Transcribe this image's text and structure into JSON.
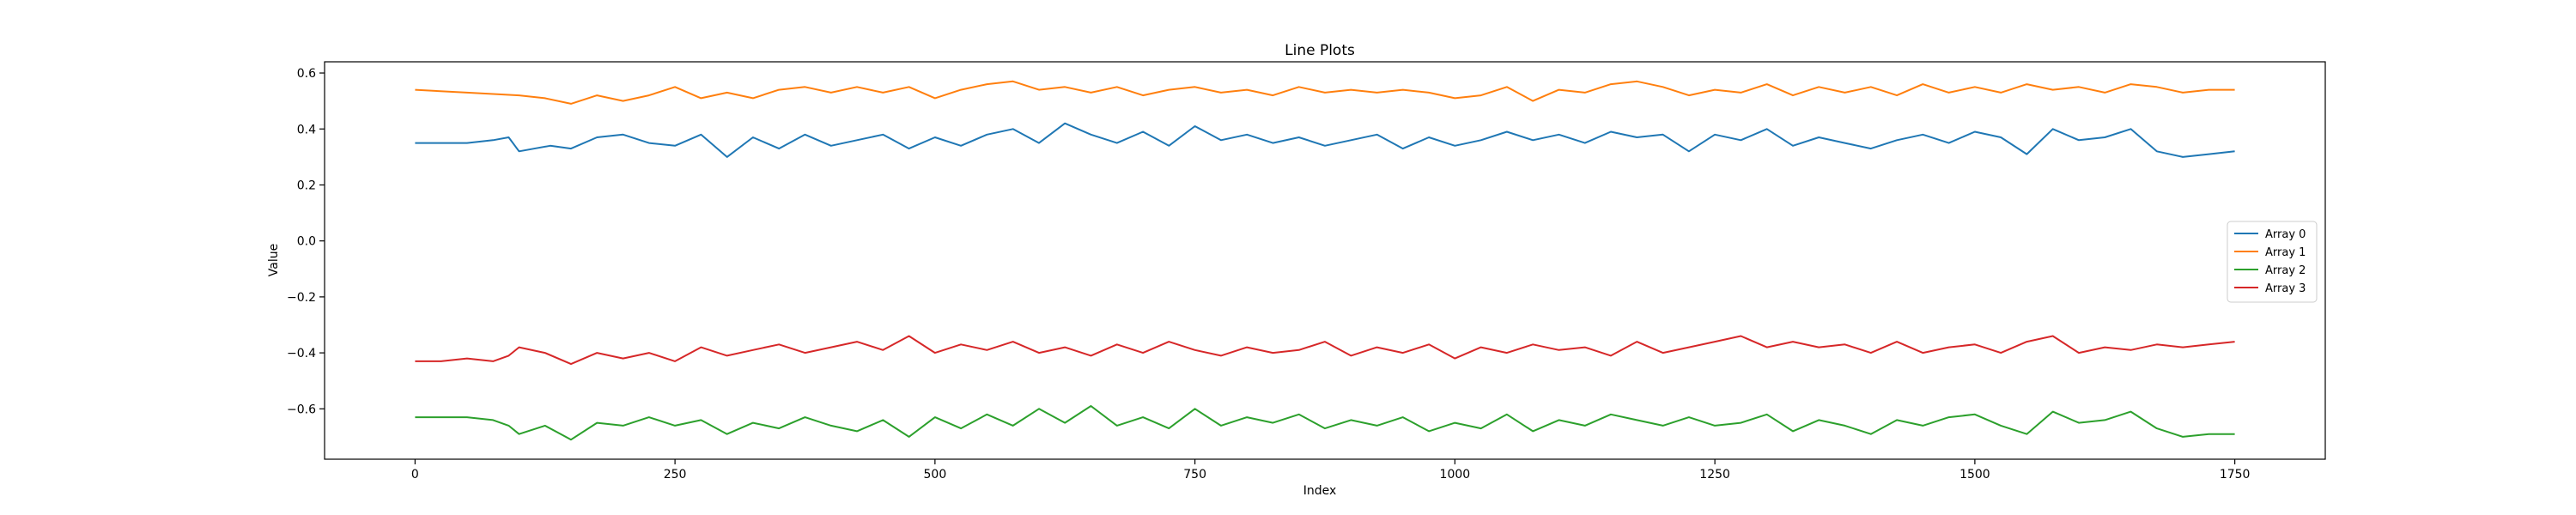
{
  "chart_data": {
    "type": "line",
    "title": "Line Plots",
    "xlabel": "Index",
    "ylabel": "Value",
    "xlim": [
      -87,
      1837
    ],
    "ylim": [
      -0.78,
      0.64
    ],
    "xticks": [
      0,
      250,
      500,
      750,
      1000,
      1250,
      1500,
      1750
    ],
    "xtick_labels": [
      "0",
      "250",
      "500",
      "750",
      "1000",
      "1250",
      "1500",
      "1750"
    ],
    "yticks": [
      -0.6,
      -0.4,
      -0.2,
      0.0,
      0.2,
      0.4,
      0.6
    ],
    "ytick_labels": [
      "−0.6",
      "−0.4",
      "−0.2",
      "0.0",
      "0.2",
      "0.4",
      "0.6"
    ],
    "legend_position": "center-right",
    "grid": false,
    "series": [
      {
        "name": "Array 0",
        "color": "#1f77b4",
        "x": [
          0,
          50,
          75,
          90,
          100,
          130,
          150,
          175,
          200,
          225,
          250,
          275,
          300,
          325,
          350,
          375,
          400,
          425,
          450,
          475,
          500,
          525,
          550,
          575,
          600,
          625,
          650,
          675,
          700,
          725,
          750,
          775,
          800,
          825,
          850,
          875,
          900,
          925,
          950,
          975,
          1000,
          1025,
          1050,
          1075,
          1100,
          1125,
          1150,
          1175,
          1200,
          1225,
          1250,
          1275,
          1300,
          1325,
          1350,
          1375,
          1400,
          1425,
          1450,
          1475,
          1500,
          1525,
          1550,
          1575,
          1600,
          1625,
          1650,
          1675,
          1700,
          1725,
          1750
        ],
        "y": [
          0.35,
          0.35,
          0.36,
          0.37,
          0.32,
          0.34,
          0.33,
          0.37,
          0.38,
          0.35,
          0.34,
          0.38,
          0.3,
          0.37,
          0.33,
          0.38,
          0.34,
          0.36,
          0.38,
          0.33,
          0.37,
          0.34,
          0.38,
          0.4,
          0.35,
          0.42,
          0.38,
          0.35,
          0.39,
          0.34,
          0.41,
          0.36,
          0.38,
          0.35,
          0.37,
          0.34,
          0.36,
          0.38,
          0.33,
          0.37,
          0.34,
          0.36,
          0.39,
          0.36,
          0.38,
          0.35,
          0.39,
          0.37,
          0.38,
          0.32,
          0.38,
          0.36,
          0.4,
          0.34,
          0.37,
          0.35,
          0.33,
          0.36,
          0.38,
          0.35,
          0.39,
          0.37,
          0.31,
          0.4,
          0.36,
          0.37,
          0.4,
          0.32,
          0.3,
          0.31,
          0.32
        ]
      },
      {
        "name": "Array 1",
        "color": "#ff7f0e",
        "x": [
          0,
          50,
          100,
          125,
          150,
          175,
          200,
          225,
          250,
          275,
          300,
          325,
          350,
          375,
          400,
          425,
          450,
          475,
          500,
          525,
          550,
          575,
          600,
          625,
          650,
          675,
          700,
          725,
          750,
          775,
          800,
          825,
          850,
          875,
          900,
          925,
          950,
          975,
          1000,
          1025,
          1050,
          1075,
          1100,
          1125,
          1150,
          1175,
          1200,
          1225,
          1250,
          1275,
          1300,
          1325,
          1350,
          1375,
          1400,
          1425,
          1450,
          1475,
          1500,
          1525,
          1550,
          1575,
          1600,
          1625,
          1650,
          1675,
          1700,
          1725,
          1750
        ],
        "y": [
          0.54,
          0.53,
          0.52,
          0.51,
          0.49,
          0.52,
          0.5,
          0.52,
          0.55,
          0.51,
          0.53,
          0.51,
          0.54,
          0.55,
          0.53,
          0.55,
          0.53,
          0.55,
          0.51,
          0.54,
          0.56,
          0.57,
          0.54,
          0.55,
          0.53,
          0.55,
          0.52,
          0.54,
          0.55,
          0.53,
          0.54,
          0.52,
          0.55,
          0.53,
          0.54,
          0.53,
          0.54,
          0.53,
          0.51,
          0.52,
          0.55,
          0.5,
          0.54,
          0.53,
          0.56,
          0.57,
          0.55,
          0.52,
          0.54,
          0.53,
          0.56,
          0.52,
          0.55,
          0.53,
          0.55,
          0.52,
          0.56,
          0.53,
          0.55,
          0.53,
          0.56,
          0.54,
          0.55,
          0.53,
          0.56,
          0.55,
          0.53,
          0.54,
          0.54
        ]
      },
      {
        "name": "Array 2",
        "color": "#2ca02c",
        "x": [
          0,
          50,
          75,
          90,
          100,
          125,
          150,
          175,
          200,
          225,
          250,
          275,
          300,
          325,
          350,
          375,
          400,
          425,
          450,
          475,
          500,
          525,
          550,
          575,
          600,
          625,
          650,
          675,
          700,
          725,
          750,
          775,
          800,
          825,
          850,
          875,
          900,
          925,
          950,
          975,
          1000,
          1025,
          1050,
          1075,
          1100,
          1125,
          1150,
          1175,
          1200,
          1225,
          1250,
          1275,
          1300,
          1325,
          1350,
          1375,
          1400,
          1425,
          1450,
          1475,
          1500,
          1525,
          1550,
          1575,
          1600,
          1625,
          1650,
          1675,
          1700,
          1725,
          1750
        ],
        "y": [
          -0.63,
          -0.63,
          -0.64,
          -0.66,
          -0.69,
          -0.66,
          -0.71,
          -0.65,
          -0.66,
          -0.63,
          -0.66,
          -0.64,
          -0.69,
          -0.65,
          -0.67,
          -0.63,
          -0.66,
          -0.68,
          -0.64,
          -0.7,
          -0.63,
          -0.67,
          -0.62,
          -0.66,
          -0.6,
          -0.65,
          -0.59,
          -0.66,
          -0.63,
          -0.67,
          -0.6,
          -0.66,
          -0.63,
          -0.65,
          -0.62,
          -0.67,
          -0.64,
          -0.66,
          -0.63,
          -0.68,
          -0.65,
          -0.67,
          -0.62,
          -0.68,
          -0.64,
          -0.66,
          -0.62,
          -0.64,
          -0.66,
          -0.63,
          -0.66,
          -0.65,
          -0.62,
          -0.68,
          -0.64,
          -0.66,
          -0.69,
          -0.64,
          -0.66,
          -0.63,
          -0.62,
          -0.66,
          -0.69,
          -0.61,
          -0.65,
          -0.64,
          -0.61,
          -0.67,
          -0.7,
          -0.69,
          -0.69
        ]
      },
      {
        "name": "Array 3",
        "color": "#d62728",
        "x": [
          0,
          25,
          50,
          75,
          90,
          100,
          125,
          150,
          175,
          200,
          225,
          250,
          275,
          300,
          325,
          350,
          375,
          400,
          425,
          450,
          475,
          500,
          525,
          550,
          575,
          600,
          625,
          650,
          675,
          700,
          725,
          750,
          775,
          800,
          825,
          850,
          875,
          900,
          925,
          950,
          975,
          1000,
          1025,
          1050,
          1075,
          1100,
          1125,
          1150,
          1175,
          1200,
          1225,
          1250,
          1275,
          1300,
          1325,
          1350,
          1375,
          1400,
          1425,
          1450,
          1475,
          1500,
          1525,
          1550,
          1575,
          1600,
          1625,
          1650,
          1675,
          1700,
          1725,
          1750
        ],
        "y": [
          -0.43,
          -0.43,
          -0.42,
          -0.43,
          -0.41,
          -0.38,
          -0.4,
          -0.44,
          -0.4,
          -0.42,
          -0.4,
          -0.43,
          -0.38,
          -0.41,
          -0.39,
          -0.37,
          -0.4,
          -0.38,
          -0.36,
          -0.39,
          -0.34,
          -0.4,
          -0.37,
          -0.39,
          -0.36,
          -0.4,
          -0.38,
          -0.41,
          -0.37,
          -0.4,
          -0.36,
          -0.39,
          -0.41,
          -0.38,
          -0.4,
          -0.39,
          -0.36,
          -0.41,
          -0.38,
          -0.4,
          -0.37,
          -0.42,
          -0.38,
          -0.4,
          -0.37,
          -0.39,
          -0.38,
          -0.41,
          -0.36,
          -0.4,
          -0.38,
          -0.36,
          -0.34,
          -0.38,
          -0.36,
          -0.38,
          -0.37,
          -0.4,
          -0.36,
          -0.4,
          -0.38,
          -0.37,
          -0.4,
          -0.36,
          -0.34,
          -0.4,
          -0.38,
          -0.39,
          -0.37,
          -0.38,
          -0.37,
          -0.36
        ]
      }
    ]
  }
}
